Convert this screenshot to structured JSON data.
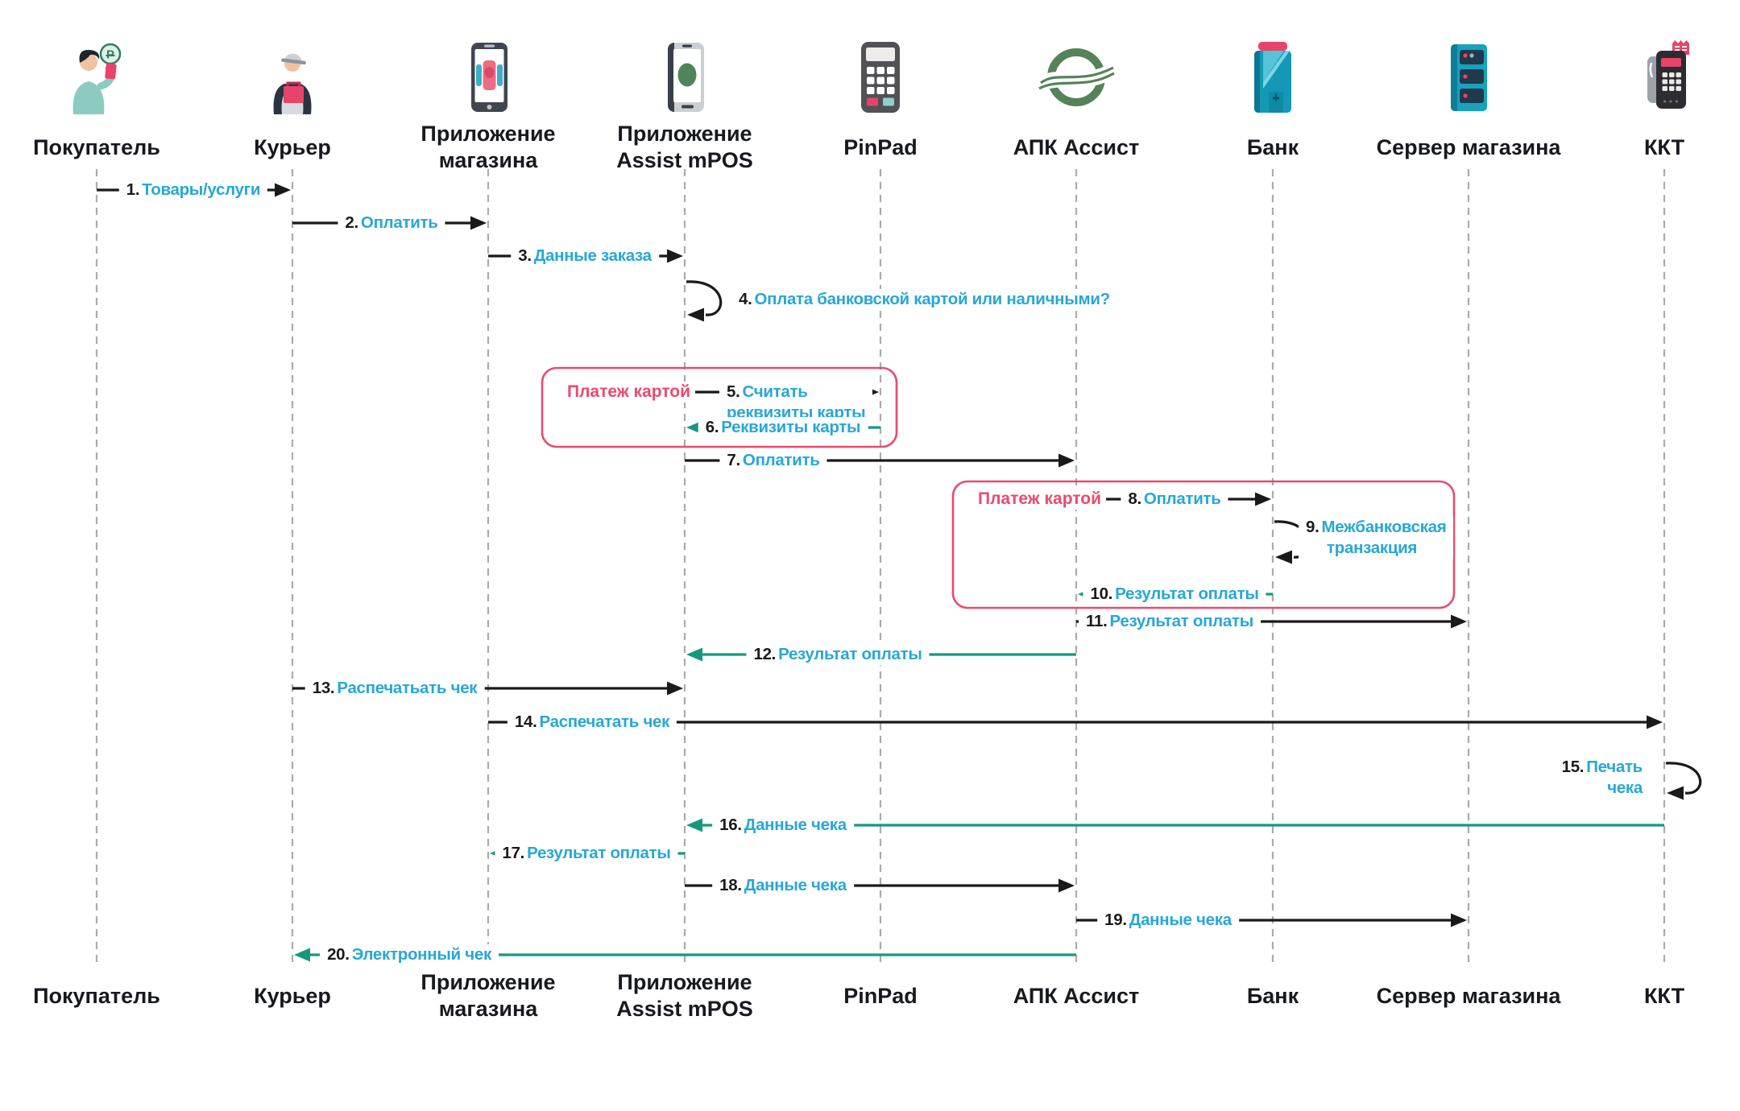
{
  "diagram": {
    "type": "sequence-diagram",
    "language": "ru"
  },
  "colors": {
    "message_label_cyan": "#27A7D7",
    "message_number_black": "#1A1A1A",
    "arrow_black": "#1A1A1A",
    "arrow_teal": "#14997F",
    "frame_red": "#EA4A6E",
    "lifeline_grey": "#ABABAB",
    "actor_label_black": "#17191E",
    "assist_logo_green": "#568259",
    "icon_teal": "#1498B8",
    "icon_red": "#E8436A"
  },
  "actors": [
    {
      "key": "buyer",
      "icon": "buyer-icon",
      "label": "Покупатель",
      "label_lines": [
        "Покупатель"
      ]
    },
    {
      "key": "courier",
      "icon": "courier-icon",
      "label": "Курьер",
      "label_lines": [
        "Курьер"
      ]
    },
    {
      "key": "store-app",
      "icon": "store-app-icon",
      "label": "Приложение магазина",
      "label_lines": [
        "Приложение",
        "магазина"
      ]
    },
    {
      "key": "mpos-app",
      "icon": "mpos-app-icon",
      "label": "Приложение Assist mPOS",
      "label_lines": [
        "Приложение",
        "Assist mPOS"
      ]
    },
    {
      "key": "pinpad",
      "icon": "pinpad-icon",
      "label": "PinPad",
      "label_lines": [
        "PinPad"
      ]
    },
    {
      "key": "assist",
      "icon": "assist-icon",
      "label": "АПК Ассист",
      "label_lines": [
        "АПК Ассист"
      ]
    },
    {
      "key": "bank",
      "icon": "bank-icon",
      "label": "Банк",
      "label_lines": [
        "Банк"
      ]
    },
    {
      "key": "store-server",
      "icon": "server-icon",
      "label": "Сервер магазина",
      "label_lines": [
        "Сервер магазина"
      ]
    },
    {
      "key": "kkt",
      "icon": "kkt-icon",
      "label": "ККТ",
      "label_lines": [
        "ККТ"
      ]
    }
  ],
  "messages": [
    {
      "num": "1.",
      "label": "Товары/услуги",
      "from": "buyer",
      "to": "courier",
      "style": "black"
    },
    {
      "num": "2.",
      "label": "Оплатить",
      "from": "courier",
      "to": "store-app",
      "style": "black"
    },
    {
      "num": "3.",
      "label": "Данные заказа",
      "from": "store-app",
      "to": "mpos-app",
      "style": "black"
    },
    {
      "num": "4.",
      "label": "Оплата банковской картой или наличными?",
      "from": "mpos-app",
      "to": "mpos-app",
      "style": "black",
      "self": true
    },
    {
      "num": "5.",
      "label": "Считать реквизиты карты",
      "label_lines": [
        "Считать",
        "реквизиты карты"
      ],
      "from": "mpos-app",
      "to": "pinpad",
      "style": "black"
    },
    {
      "num": "6.",
      "label": "Реквизиты карты",
      "from": "pinpad",
      "to": "mpos-app",
      "style": "teal"
    },
    {
      "num": "7.",
      "label": "Оплатить",
      "from": "mpos-app",
      "to": "assist",
      "style": "black"
    },
    {
      "num": "8.",
      "label": "Оплатить",
      "from": "assist",
      "to": "bank",
      "style": "black"
    },
    {
      "num": "9.",
      "label": "Межбанковская транзакция",
      "label_lines": [
        "Межбанковская",
        "транзакция"
      ],
      "from": "bank",
      "to": "bank",
      "style": "black",
      "self": true
    },
    {
      "num": "10.",
      "label": "Результат оплаты",
      "from": "bank",
      "to": "assist",
      "style": "teal"
    },
    {
      "num": "11.",
      "label": "Результат оплаты",
      "from": "assist",
      "to": "store-server",
      "style": "black"
    },
    {
      "num": "12.",
      "label": "Результат оплаты",
      "from": "assist",
      "to": "mpos-app",
      "style": "teal"
    },
    {
      "num": "13.",
      "label": "Распечатьать чек",
      "from": "courier",
      "to": "mpos-app",
      "style": "black"
    },
    {
      "num": "14.",
      "label": "Распечатать чек",
      "from": "store-app",
      "to": "kkt",
      "style": "black"
    },
    {
      "num": "15.",
      "label": "Печать чека",
      "label_lines": [
        "Печать",
        "чека"
      ],
      "from": "kkt",
      "to": "kkt",
      "style": "black",
      "self": true
    },
    {
      "num": "16.",
      "label": "Данные чека",
      "from": "kkt",
      "to": "mpos-app",
      "style": "teal"
    },
    {
      "num": "17.",
      "label": "Результат оплаты",
      "from": "mpos-app",
      "to": "store-app",
      "style": "teal"
    },
    {
      "num": "18.",
      "label": "Данные чека",
      "from": "mpos-app",
      "to": "assist",
      "style": "black"
    },
    {
      "num": "19.",
      "label": "Данные чека",
      "from": "assist",
      "to": "store-server",
      "style": "black"
    },
    {
      "num": "20.",
      "label": "Электронный чек",
      "from": "assist",
      "to": "courier",
      "style": "teal"
    }
  ],
  "frames": [
    {
      "id": "card-payment-1",
      "label": "Платеж картой",
      "encloses": [
        "5",
        "6"
      ]
    },
    {
      "id": "card-payment-2",
      "label": "Платеж картой",
      "encloses": [
        "8",
        "9",
        "10"
      ]
    }
  ]
}
